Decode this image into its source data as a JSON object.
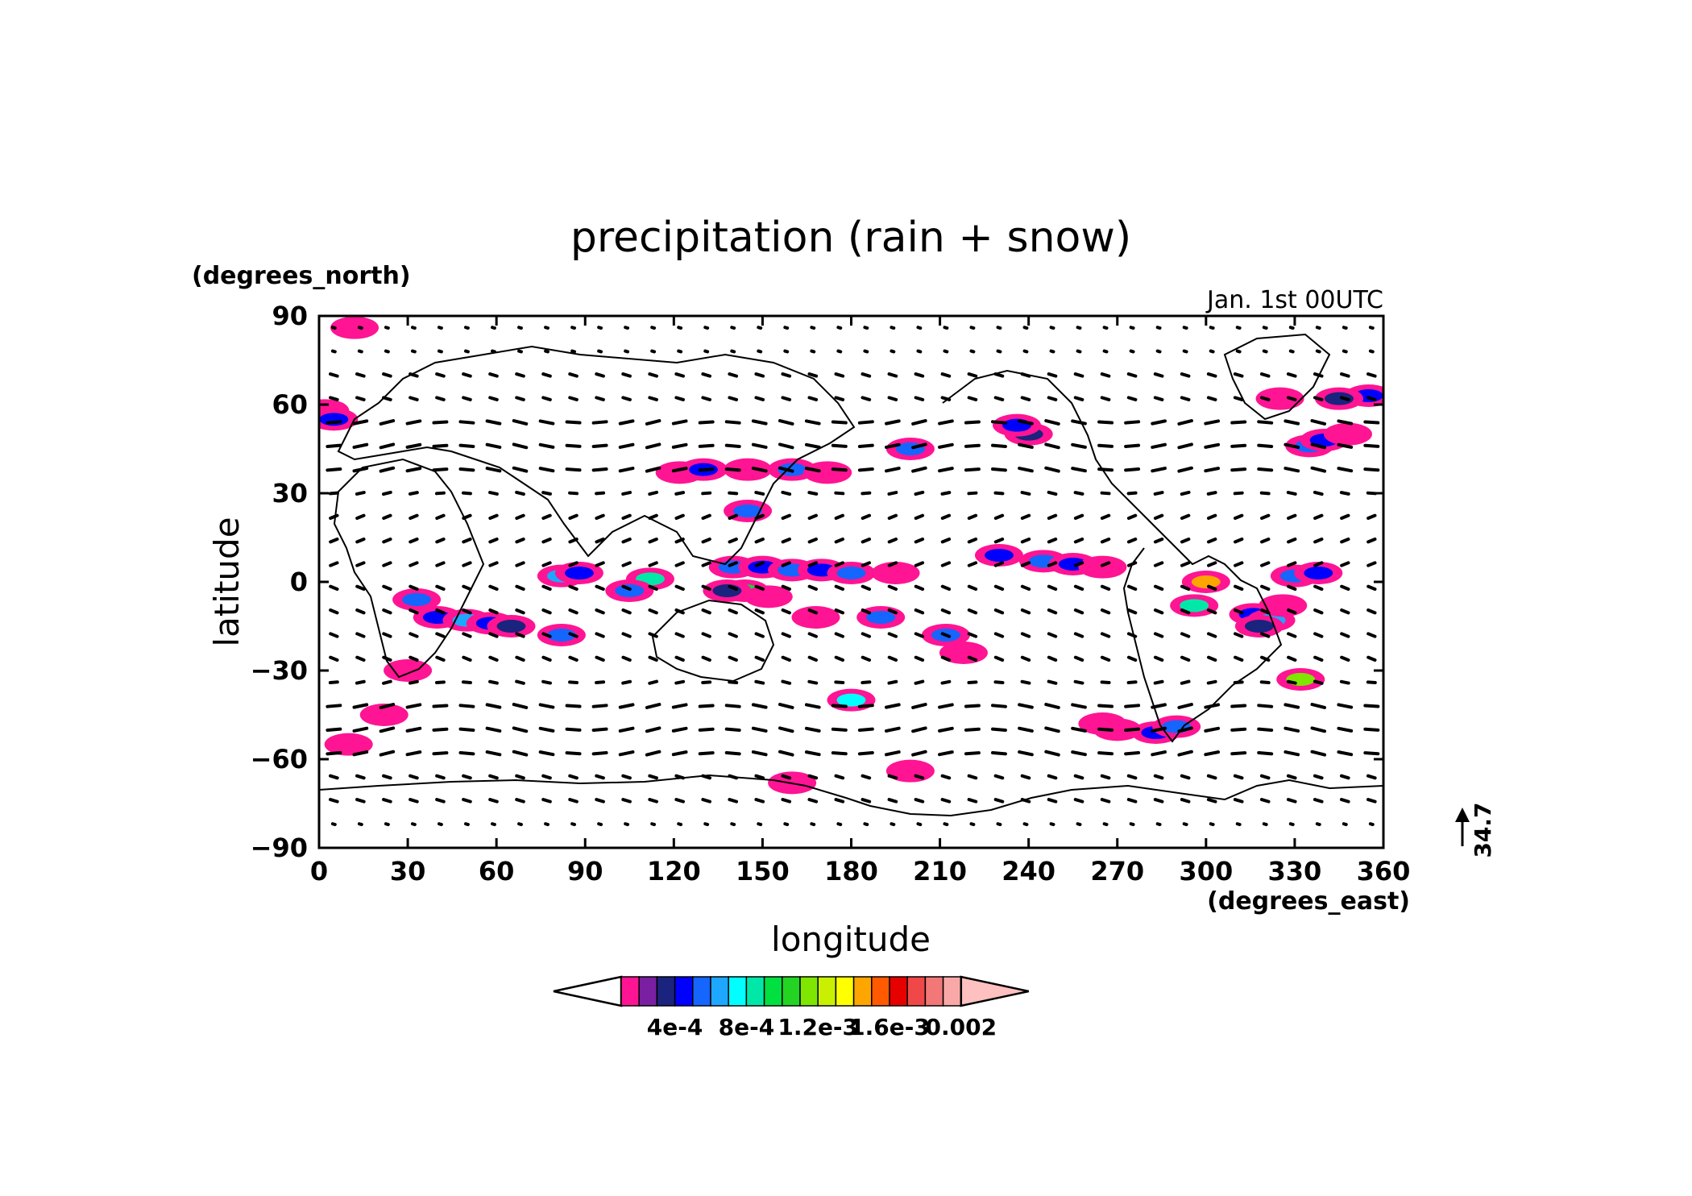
{
  "title": "precipitation (rain + snow)",
  "time_label": "Jan. 1st 00UTC",
  "y_unit": "(degrees_north)",
  "x_unit": "(degrees_east)",
  "y_axis_label": "latitude",
  "x_axis_label": "longitude",
  "x_ticks": [
    "0",
    "30",
    "60",
    "90",
    "120",
    "150",
    "180",
    "210",
    "240",
    "270",
    "300",
    "330",
    "360"
  ],
  "y_ticks": [
    "90",
    "60",
    "30",
    "0",
    "−30",
    "−60",
    "−90"
  ],
  "vector_reference": "34.7",
  "colorbar": {
    "colors": [
      "#ff1493",
      "#7b1fa2",
      "#1a237e",
      "#0000ff",
      "#1565ff",
      "#1ea7ff",
      "#00ffff",
      "#00e8a8",
      "#00e040",
      "#23d423",
      "#7ee600",
      "#c8f000",
      "#ffff00",
      "#ffa500",
      "#ff5a00",
      "#e60000",
      "#f04848",
      "#f27777",
      "#f9a8a8"
    ],
    "under_color": "#ffffff",
    "over_color": "#ffc0c0",
    "labels": [
      "4e-4",
      "8e-4",
      "1.2e-3",
      "1.6e-3",
      "0.002"
    ]
  },
  "precip_cells": [
    [
      2,
      58,
      "#ff1493"
    ],
    [
      5,
      55,
      "#0000ff"
    ],
    [
      12,
      86,
      "#ff1493"
    ],
    [
      122,
      37,
      "#ff1493"
    ],
    [
      130,
      38,
      "#0000ff"
    ],
    [
      145,
      38,
      "#ff1493"
    ],
    [
      160,
      38,
      "#1565ff"
    ],
    [
      172,
      37,
      "#ff1493"
    ],
    [
      200,
      45,
      "#1565ff"
    ],
    [
      240,
      50,
      "#1a237e"
    ],
    [
      236,
      53,
      "#0000ff"
    ],
    [
      335,
      46,
      "#1565ff"
    ],
    [
      340,
      48,
      "#0000ff"
    ],
    [
      348,
      50,
      "#ff1493"
    ],
    [
      325,
      62,
      "#ff1493"
    ],
    [
      355,
      63,
      "#0000ff"
    ],
    [
      345,
      62,
      "#1a237e"
    ],
    [
      145,
      24,
      "#1565ff"
    ],
    [
      82,
      2,
      "#1ea7ff"
    ],
    [
      88,
      3,
      "#0000ff"
    ],
    [
      112,
      1,
      "#00e8a8"
    ],
    [
      105,
      -3,
      "#1565ff"
    ],
    [
      140,
      5,
      "#1565ff"
    ],
    [
      150,
      5,
      "#0000ff"
    ],
    [
      160,
      4,
      "#1565ff"
    ],
    [
      170,
      4,
      "#0000ff"
    ],
    [
      180,
      3,
      "#1565ff"
    ],
    [
      195,
      3,
      "#ff1493"
    ],
    [
      230,
      9,
      "#0000ff"
    ],
    [
      245,
      7,
      "#1565ff"
    ],
    [
      255,
      6,
      "#0000ff"
    ],
    [
      265,
      5,
      "#ff1493"
    ],
    [
      144,
      -3,
      "#00e040"
    ],
    [
      152,
      -5,
      "#ff1493"
    ],
    [
      138,
      -3,
      "#1a237e"
    ],
    [
      40,
      -12,
      "#0000ff"
    ],
    [
      50,
      -13,
      "#1ea7ff"
    ],
    [
      58,
      -14,
      "#0000ff"
    ],
    [
      65,
      -15,
      "#1a237e"
    ],
    [
      82,
      -18,
      "#1565ff"
    ],
    [
      33,
      -6,
      "#1565ff"
    ],
    [
      168,
      -12,
      "#ff1493"
    ],
    [
      190,
      -12,
      "#1565ff"
    ],
    [
      212,
      -18,
      "#1565ff"
    ],
    [
      218,
      -24,
      "#ff1493"
    ],
    [
      300,
      0,
      "#ffa500"
    ],
    [
      296,
      -8,
      "#00e8a8"
    ],
    [
      316,
      -11,
      "#0000ff"
    ],
    [
      322,
      -13,
      "#1ea7ff"
    ],
    [
      318,
      -15,
      "#1a237e"
    ],
    [
      326,
      -8,
      "#ff1493"
    ],
    [
      332,
      -33,
      "#7ee600"
    ],
    [
      180,
      -40,
      "#00ffff"
    ],
    [
      283,
      -51,
      "#0000ff"
    ],
    [
      290,
      -49,
      "#1565ff"
    ],
    [
      22,
      -45,
      "#ff1493"
    ],
    [
      10,
      -55,
      "#ff1493"
    ],
    [
      330,
      2,
      "#1565ff"
    ],
    [
      338,
      3,
      "#0000ff"
    ],
    [
      265,
      -48,
      "#ff1493"
    ],
    [
      270,
      -50,
      "#ff1493"
    ],
    [
      200,
      -64,
      "#ff1493"
    ],
    [
      160,
      -68,
      "#ff1493"
    ],
    [
      30,
      -30,
      "#ff1493"
    ]
  ]
}
